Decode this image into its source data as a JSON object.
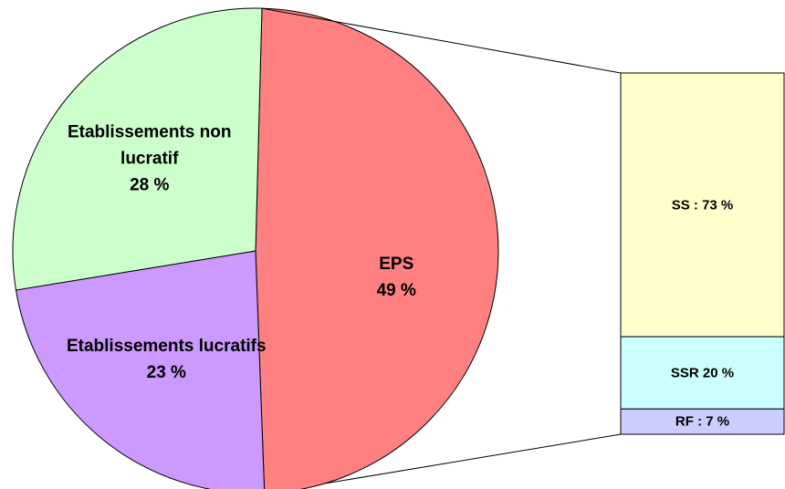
{
  "chart_data": [
    {
      "type": "pie",
      "categories": [
        "EPS",
        "Etablissements lucratifs",
        "Etablissements non lucratif"
      ],
      "values": [
        49,
        23,
        28
      ],
      "value_labels": [
        "49 %",
        "23 %",
        "28 %"
      ],
      "colors": [
        "#ff8080",
        "#cc99ff",
        "#ccffcc"
      ]
    },
    {
      "type": "stacked_bar",
      "values": [
        73,
        20,
        7
      ],
      "value_labels": [
        "SS : 73 %",
        "SSR 20 %",
        "RF : 7 %"
      ],
      "colors": [
        "#ffffcc",
        "#ccffff",
        "#ccccff"
      ]
    }
  ]
}
